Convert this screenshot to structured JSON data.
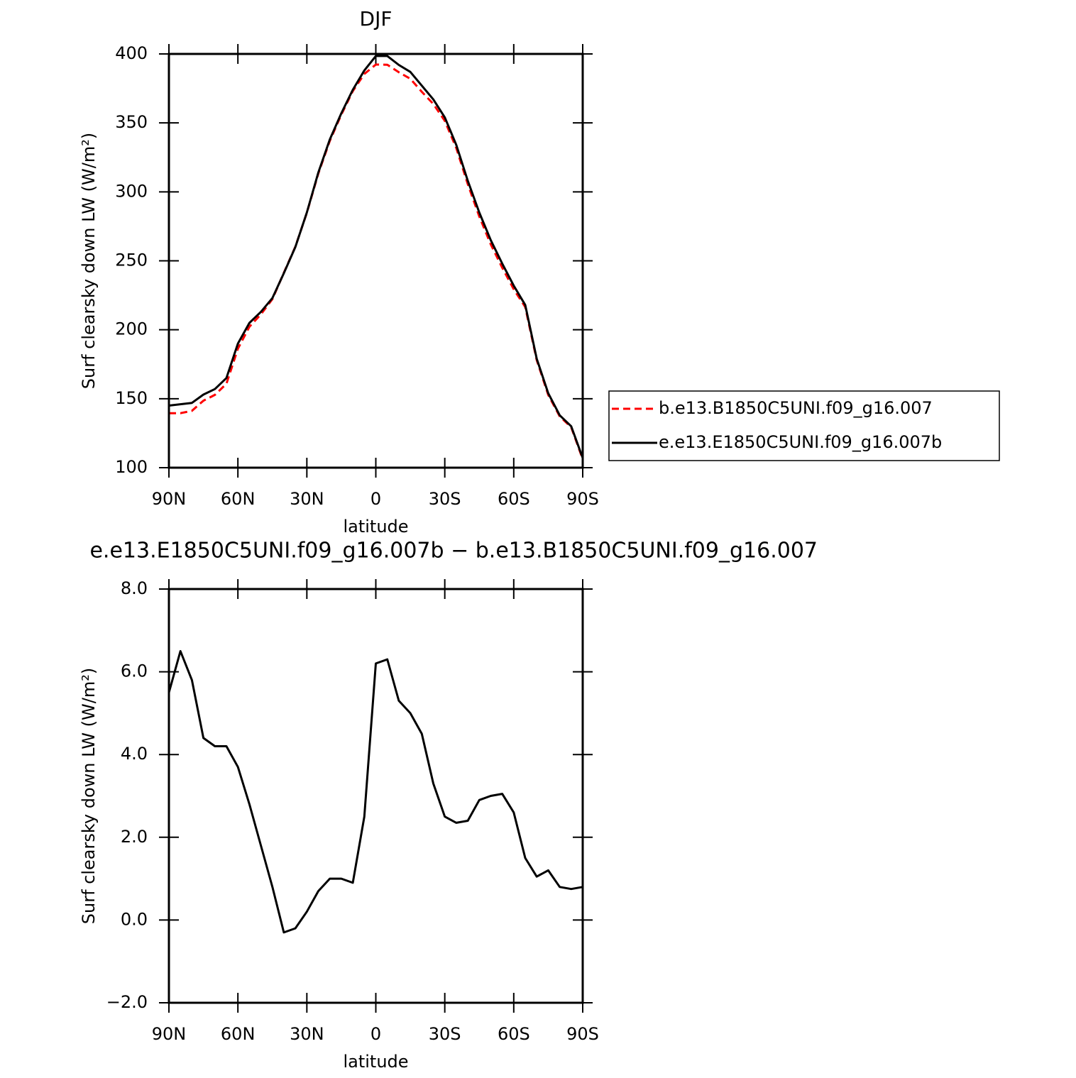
{
  "chart_data": [
    {
      "type": "line",
      "title": "DJF",
      "xlabel": "latitude",
      "ylabel": "Surf clearsky down LW (W/m²)",
      "x": [
        90,
        85,
        80,
        75,
        70,
        65,
        60,
        55,
        50,
        45,
        40,
        35,
        30,
        25,
        20,
        15,
        10,
        5,
        0,
        -5,
        -10,
        -15,
        -20,
        -25,
        -30,
        -35,
        -40,
        -45,
        -50,
        -55,
        -60,
        -65,
        -70,
        -75,
        -80,
        -85,
        -90
      ],
      "series": [
        {
          "name": "b.e13.B1850C5UNI.f09_g16.007",
          "color": "#ff0000",
          "style": "dashed",
          "values": [
            139.5,
            139.5,
            141.2,
            148.6,
            152.8,
            160.8,
            186.3,
            202.2,
            211.2,
            222.2,
            241.3,
            260.2,
            284.8,
            313.3,
            337,
            356,
            373.1,
            385.5,
            392.3,
            392.2,
            386.7,
            382,
            372.5,
            363.7,
            351.5,
            331.7,
            305.6,
            282.1,
            262,
            245,
            229.4,
            216.5,
            178,
            152.8,
            137.2,
            129.3,
            106.2
          ]
        },
        {
          "name": "e.e13.E1850C5UNI.f09_g16.007b",
          "color": "#000000",
          "style": "solid",
          "values": [
            145,
            146,
            147,
            153,
            157,
            165,
            190,
            205,
            213,
            223,
            241,
            260,
            285,
            314,
            338,
            357,
            374,
            388,
            398.5,
            398.5,
            392,
            387,
            377,
            367,
            354,
            334,
            308,
            285,
            265,
            248,
            232,
            218,
            179,
            154,
            138,
            130,
            107
          ]
        }
      ],
      "xlim": [
        90,
        -90
      ],
      "xticks": [
        {
          "value": 90,
          "label": "90N"
        },
        {
          "value": 60,
          "label": "60N"
        },
        {
          "value": 30,
          "label": "30N"
        },
        0,
        {
          "value": -30,
          "label": "30S"
        },
        {
          "value": -60,
          "label": "60S"
        },
        {
          "value": -90,
          "label": "90S"
        }
      ],
      "ylim": [
        100,
        400
      ],
      "yticks": [
        100,
        150,
        200,
        250,
        300,
        350,
        400
      ],
      "legend": "right"
    },
    {
      "type": "line",
      "title": "e.e13.E1850C5UNI.f09_g16.007b − b.e13.B1850C5UNI.f09_g16.007",
      "xlabel": "latitude",
      "ylabel": "Surf clearsky down LW (W/m²)",
      "x": [
        90,
        85,
        80,
        75,
        70,
        65,
        60,
        55,
        50,
        45,
        40,
        35,
        30,
        25,
        20,
        15,
        10,
        5,
        0,
        -5,
        -10,
        -15,
        -20,
        -25,
        -30,
        -35,
        -40,
        -45,
        -50,
        -55,
        -60,
        -65,
        -70,
        -75,
        -80,
        -85,
        -90
      ],
      "series": [
        {
          "color": "#000000",
          "style": "solid",
          "values": [
            5.5,
            6.5,
            5.8,
            4.4,
            4.2,
            4.2,
            3.7,
            2.8,
            1.8,
            0.8,
            -0.3,
            -0.2,
            0.2,
            0.7,
            1.0,
            1.0,
            0.9,
            2.5,
            6.2,
            6.3,
            5.3,
            5.0,
            4.5,
            3.3,
            2.5,
            2.35,
            2.4,
            2.9,
            3.0,
            3.05,
            2.6,
            1.5,
            1.05,
            1.2,
            0.8,
            0.75,
            0.8
          ]
        }
      ],
      "xlim": [
        90,
        -90
      ],
      "xticks": [
        {
          "value": 90,
          "label": "90N"
        },
        {
          "value": 60,
          "label": "60N"
        },
        {
          "value": 30,
          "label": "30N"
        },
        0,
        {
          "value": -30,
          "label": "30S"
        },
        {
          "value": -60,
          "label": "60S"
        },
        {
          "value": -90,
          "label": "90S"
        }
      ],
      "ylim": [
        -2,
        8
      ],
      "yticks": [
        {
          "value": -2,
          "label": "−2.0"
        },
        {
          "value": 0,
          "label": "0.0"
        },
        {
          "value": 2,
          "label": "2.0"
        },
        {
          "value": 4,
          "label": "4.0"
        },
        {
          "value": 6,
          "label": "6.0"
        },
        {
          "value": 8,
          "label": "8.0"
        }
      ]
    }
  ]
}
